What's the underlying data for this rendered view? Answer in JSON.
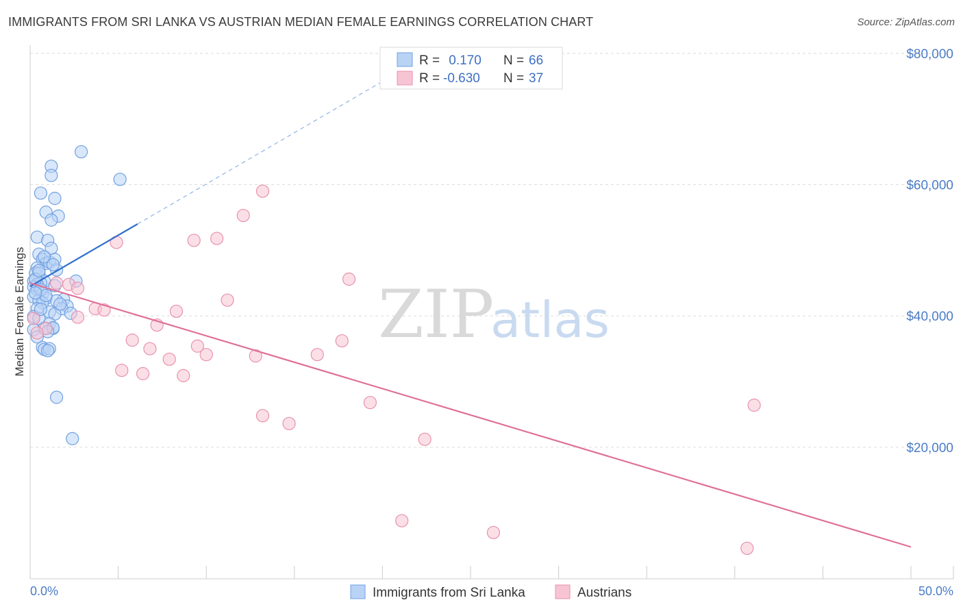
{
  "title": "IMMIGRANTS FROM SRI LANKA VS AUSTRIAN MEDIAN FEMALE EARNINGS CORRELATION CHART",
  "source": "Source: ZipAtlas.com",
  "watermark": {
    "zip": "ZIP",
    "atlas": "atlas"
  },
  "chart_data": {
    "type": "scatter",
    "xlabel": "",
    "ylabel": "Median Female Earnings",
    "xlim": [
      0,
      50
    ],
    "ylim": [
      0,
      82000
    ],
    "x_tick_labels": {
      "left": "0.0%",
      "right": "50.0%"
    },
    "y_ticks": [
      {
        "value": 20000,
        "label": "$20,000"
      },
      {
        "value": 40000,
        "label": "$40,000"
      },
      {
        "value": 60000,
        "label": "$60,000"
      },
      {
        "value": 80000,
        "label": "$80,000"
      }
    ],
    "legend": [
      {
        "name": "Immigrants from Sri Lanka",
        "r_label": "R =",
        "r_value": " 0.170",
        "n_label": "N =",
        "n_value": "66",
        "color": "#6fa0e0",
        "fill": "#b9d3f5"
      },
      {
        "name": "Austrians",
        "r_label": "R =",
        "r_value": "-0.630",
        "n_label": "N =",
        "n_value": "37",
        "color": "#e891ad",
        "fill": "#f7c4d4"
      }
    ],
    "series": [
      {
        "name": "Immigrants from Sri Lanka",
        "color": "#6fa0e0",
        "trend": {
          "x1": 0,
          "y1": 44500,
          "x2": 6.1,
          "y2": 54000,
          "dash_to_x": 20.5,
          "dash_to_y": 76500,
          "line_color": "#2e6fcc"
        },
        "points": [
          [
            2.9,
            65000
          ],
          [
            1.2,
            62800
          ],
          [
            5.1,
            60800
          ],
          [
            1.2,
            61400
          ],
          [
            0.6,
            58700
          ],
          [
            1.4,
            57900
          ],
          [
            0.9,
            55800
          ],
          [
            1.6,
            55200
          ],
          [
            1.2,
            54600
          ],
          [
            0.4,
            52000
          ],
          [
            1.0,
            51500
          ],
          [
            1.2,
            50300
          ],
          [
            0.5,
            49400
          ],
          [
            0.7,
            48600
          ],
          [
            0.9,
            48000
          ],
          [
            1.1,
            48200
          ],
          [
            1.4,
            48600
          ],
          [
            0.4,
            47300
          ],
          [
            1.5,
            47000
          ],
          [
            0.3,
            46500
          ],
          [
            0.5,
            46500
          ],
          [
            0.8,
            45300
          ],
          [
            0.2,
            45300
          ],
          [
            0.6,
            45000
          ],
          [
            0.4,
            44800
          ],
          [
            2.6,
            45300
          ],
          [
            1.4,
            44600
          ],
          [
            0.2,
            44400
          ],
          [
            0.4,
            44000
          ],
          [
            0.7,
            43400
          ],
          [
            0.2,
            42900
          ],
          [
            0.9,
            42700
          ],
          [
            1.9,
            42500
          ],
          [
            0.5,
            42400
          ],
          [
            1.5,
            42300
          ],
          [
            0.7,
            42000
          ],
          [
            2.1,
            41500
          ],
          [
            1.8,
            41100
          ],
          [
            0.4,
            41100
          ],
          [
            1.1,
            40600
          ],
          [
            2.3,
            40400
          ],
          [
            1.4,
            40300
          ],
          [
            0.2,
            39900
          ],
          [
            0.5,
            39600
          ],
          [
            1.1,
            38800
          ],
          [
            0.8,
            38100
          ],
          [
            1.3,
            38100
          ],
          [
            0.2,
            37900
          ],
          [
            1.3,
            38200
          ],
          [
            0.7,
            35200
          ],
          [
            0.8,
            34900
          ],
          [
            1.1,
            35000
          ],
          [
            1.0,
            34700
          ],
          [
            1.5,
            27600
          ],
          [
            2.4,
            21300
          ],
          [
            0.3,
            45600
          ],
          [
            0.6,
            44000
          ],
          [
            0.9,
            43100
          ],
          [
            1.7,
            41800
          ],
          [
            0.5,
            46900
          ],
          [
            0.8,
            49000
          ],
          [
            1.3,
            47800
          ],
          [
            0.3,
            43500
          ],
          [
            0.6,
            41000
          ],
          [
            1.0,
            37600
          ],
          [
            0.4,
            36800
          ]
        ]
      },
      {
        "name": "Austrians",
        "color": "#e891ad",
        "trend": {
          "x1": 0,
          "y1": 45000,
          "x2": 50,
          "y2": 4800,
          "line_color": "#e07098"
        },
        "points": [
          [
            13.2,
            59000
          ],
          [
            12.1,
            55300
          ],
          [
            10.6,
            51800
          ],
          [
            9.3,
            51500
          ],
          [
            4.9,
            51200
          ],
          [
            18.1,
            45600
          ],
          [
            1.5,
            45000
          ],
          [
            2.2,
            44800
          ],
          [
            2.7,
            44200
          ],
          [
            11.2,
            42400
          ],
          [
            3.7,
            41100
          ],
          [
            4.2,
            40900
          ],
          [
            8.3,
            40700
          ],
          [
            2.7,
            39800
          ],
          [
            0.2,
            39600
          ],
          [
            7.2,
            38600
          ],
          [
            0.9,
            38100
          ],
          [
            0.4,
            37400
          ],
          [
            17.7,
            36200
          ],
          [
            5.8,
            36300
          ],
          [
            9.5,
            35400
          ],
          [
            6.8,
            35000
          ],
          [
            10.0,
            34100
          ],
          [
            12.8,
            33900
          ],
          [
            16.3,
            34100
          ],
          [
            7.9,
            33400
          ],
          [
            5.2,
            31700
          ],
          [
            6.4,
            31200
          ],
          [
            8.7,
            30900
          ],
          [
            19.3,
            26800
          ],
          [
            41.1,
            26400
          ],
          [
            13.2,
            24800
          ],
          [
            14.7,
            23600
          ],
          [
            22.4,
            21200
          ],
          [
            21.1,
            8800
          ],
          [
            26.3,
            7000
          ],
          [
            40.7,
            4600
          ]
        ]
      }
    ]
  }
}
